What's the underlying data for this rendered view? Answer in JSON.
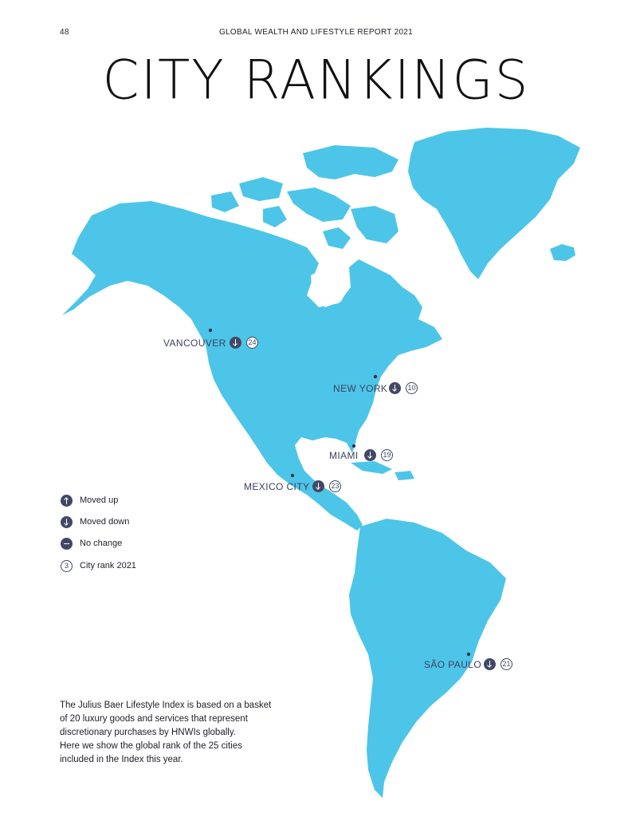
{
  "header": {
    "page_number": "48",
    "report_title": "GLOBAL WEALTH AND LIFESTYLE REPORT 2021"
  },
  "title": "CITY RANKINGS",
  "colors": {
    "land": "#4dc5e8",
    "marker": "#434766"
  },
  "cities": [
    {
      "name": "VANCOUVER",
      "movement": "down",
      "rank": "24"
    },
    {
      "name": "NEW YORK",
      "movement": "down",
      "rank": "10"
    },
    {
      "name": "MIAMI",
      "movement": "down",
      "rank": "19"
    },
    {
      "name": "MEXICO CITY",
      "movement": "down",
      "rank": "23"
    },
    {
      "name": "SÃO PAULO",
      "movement": "down",
      "rank": "21"
    }
  ],
  "legend": {
    "items": [
      {
        "icon": "arrow-up-icon",
        "label": "Moved up"
      },
      {
        "icon": "arrow-down-icon",
        "label": "Moved down"
      },
      {
        "icon": "dash-icon",
        "label": "No change"
      },
      {
        "icon": "rank-circle-icon",
        "label": "City rank 2021",
        "sample": "3"
      }
    ]
  },
  "description": {
    "lines": [
      "The Julius Baer Lifestyle Index is based on a basket",
      "of 20 luxury goods and services that represent",
      "discretionary purchases by HNWIs globally.",
      "Here we show the global rank of the 25 cities",
      "included in the Index this year."
    ]
  }
}
